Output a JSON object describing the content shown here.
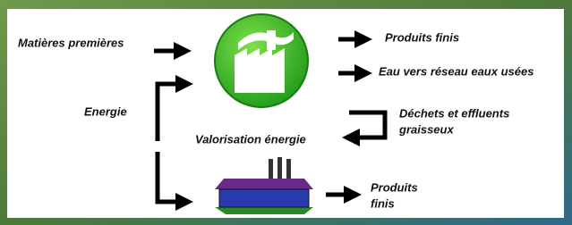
{
  "inputs": {
    "raw_materials": "Matières premières",
    "energy": "Energie"
  },
  "outputs": {
    "finished_products": "Produits finis",
    "wastewater": "Eau vers réseau eaux usées",
    "waste": [
      "Déchets et effluents",
      "graisseux"
    ]
  },
  "recovery": {
    "label": "Valorisation énergie",
    "products": [
      "Produits",
      "finis"
    ]
  }
}
